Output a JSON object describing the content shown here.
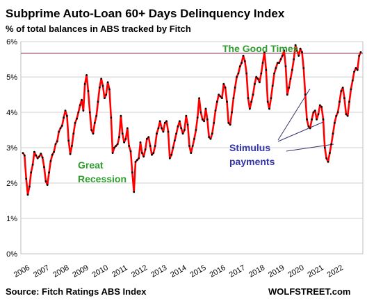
{
  "chart_data": {
    "type": "line",
    "title": "Subprime Auto-Loan 60+ Days Delinquency Index",
    "subtitle": "% of total balances in ABS tracked by Fitch",
    "xlabel": "",
    "ylabel": "",
    "ylim": [
      0,
      6
    ],
    "y_ticks": [
      "0%",
      "1%",
      "2%",
      "3%",
      "4%",
      "5%",
      "6%"
    ],
    "x_ticks": [
      "2006",
      "2007",
      "2008",
      "2009",
      "2010",
      "2011",
      "2012",
      "2013",
      "2014",
      "2015",
      "2016",
      "2017",
      "2018",
      "2019",
      "2020",
      "2021",
      "2022"
    ],
    "grid": true,
    "line_color": "#ff0000",
    "marker_color": "#000000",
    "reference_line": {
      "value": 5.67,
      "color": "#7a1f4a"
    },
    "annotations": [
      {
        "text": "The Good Times",
        "color": "#2e9e2e"
      },
      {
        "text": "Great",
        "color": "#2e9e2e"
      },
      {
        "text": "Recession",
        "color": "#2e9e2e"
      },
      {
        "text": "Stimulus",
        "color": "#3333aa"
      },
      {
        "text": "payments",
        "color": "#3333aa"
      }
    ],
    "series": [
      {
        "values": [
          2.85,
          2.78,
          2.12,
          1.67,
          1.9,
          2.3,
          2.52,
          2.88,
          2.78,
          2.7,
          2.75,
          2.83,
          2.72,
          2.45,
          2.05,
          1.95,
          2.3,
          2.62,
          2.8,
          2.88,
          3.1,
          3.18,
          3.45,
          3.55,
          3.62,
          3.85,
          4.05,
          3.9,
          3.2,
          2.82,
          3.05,
          3.4,
          3.7,
          3.82,
          4.0,
          4.2,
          4.35,
          4.05,
          4.8,
          5.05,
          4.6,
          4.0,
          3.5,
          3.4,
          3.7,
          3.9,
          4.3,
          4.7,
          4.95,
          4.75,
          4.4,
          4.5,
          4.85,
          4.65,
          3.85,
          2.85,
          3.0,
          3.05,
          3.1,
          3.3,
          3.9,
          3.4,
          3.15,
          3.25,
          3.55,
          3.05,
          2.9,
          2.3,
          1.75,
          2.6,
          2.65,
          2.7,
          3.15,
          2.85,
          2.75,
          2.95,
          3.25,
          3.3,
          3.05,
          2.8,
          2.85,
          3.05,
          3.4,
          3.55,
          3.75,
          3.55,
          3.45,
          3.7,
          3.75,
          3.45,
          2.7,
          2.8,
          3.0,
          3.2,
          3.4,
          3.6,
          3.75,
          3.55,
          3.4,
          3.5,
          3.9,
          3.65,
          3.05,
          2.85,
          3.05,
          3.25,
          3.5,
          3.85,
          4.4,
          4.0,
          3.8,
          3.75,
          4.1,
          3.8,
          3.3,
          3.25,
          3.4,
          3.7,
          4.05,
          4.3,
          4.5,
          4.45,
          4.4,
          4.8,
          4.7,
          4.3,
          3.7,
          3.65,
          4.0,
          4.4,
          4.7,
          5.0,
          5.1,
          5.3,
          5.4,
          5.6,
          5.45,
          5.1,
          4.4,
          4.1,
          4.3,
          4.5,
          4.8,
          5.0,
          4.95,
          4.85,
          5.1,
          5.4,
          5.7,
          5.2,
          4.3,
          4.1,
          4.4,
          4.75,
          5.1,
          5.25,
          5.4,
          5.4,
          5.5,
          5.6,
          5.75,
          5.3,
          4.5,
          4.7,
          4.95,
          5.2,
          5.5,
          5.9,
          5.75,
          5.6,
          5.8,
          5.7,
          5.25,
          4.5,
          3.8,
          3.6,
          3.55,
          3.8,
          4.0,
          4.05,
          3.8,
          3.95,
          4.2,
          4.15,
          3.8,
          3.0,
          2.7,
          2.6,
          2.85,
          3.1,
          3.4,
          3.7,
          3.9,
          4.0,
          4.3,
          4.6,
          4.7,
          4.4,
          3.95,
          3.9,
          4.3,
          4.65,
          4.9,
          5.15,
          5.25,
          5.2,
          5.6,
          5.7
        ]
      }
    ]
  },
  "footer": {
    "source": "Source: Fitch Ratings ABS Index",
    "brand": "WOLFSTREET.com"
  }
}
